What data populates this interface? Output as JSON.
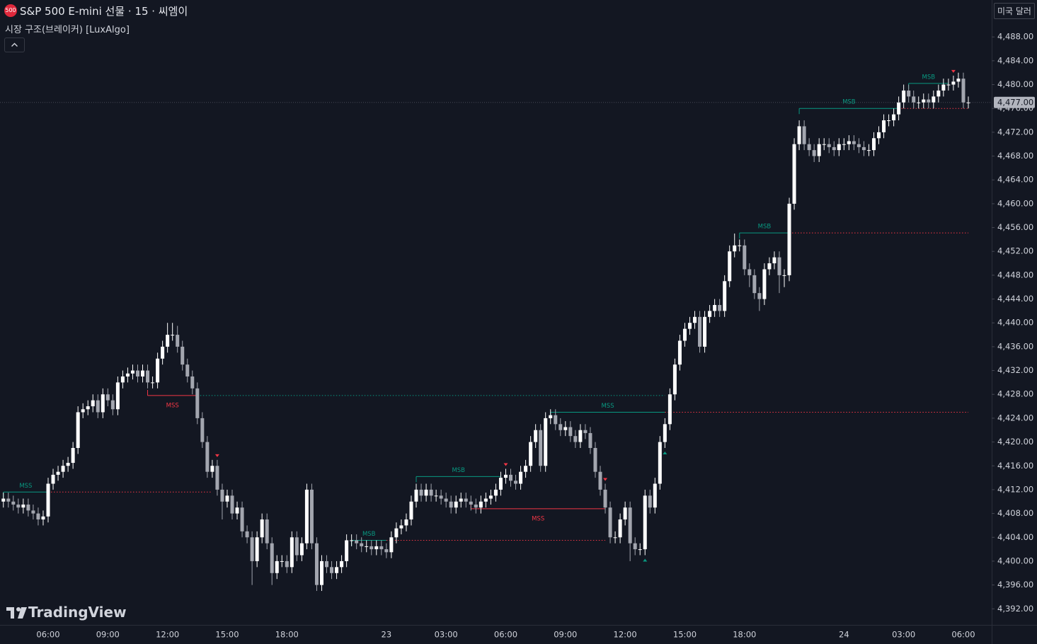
{
  "header": {
    "symbol_icon": "500",
    "title": "S&P 500 E-mini 선물 · 15 · 씨엠이",
    "indicator": "시장 구조(브레이커) [LuxAlgo]",
    "currency": "미국 달러",
    "brand": "TradingView"
  },
  "chart_data": {
    "type": "candlestick",
    "categories": [
      null,
      null,
      null,
      null,
      null,
      null,
      null,
      null,
      null,
      "06:00",
      null,
      null,
      null,
      null,
      null,
      null,
      null,
      null,
      null,
      null,
      null,
      "09:00",
      null,
      null,
      null,
      null,
      null,
      null,
      null,
      null,
      null,
      null,
      null,
      "12:00",
      null,
      null,
      null,
      null,
      null,
      null,
      null,
      null,
      null,
      null,
      null,
      "15:00",
      null,
      null,
      null,
      null,
      null,
      null,
      null,
      null,
      null,
      null,
      null,
      "18:00",
      null,
      null,
      null,
      null,
      null,
      null,
      null,
      null,
      null,
      null,
      null,
      null,
      null,
      null,
      null,
      null,
      null,
      null,
      null,
      "23",
      null,
      null,
      null,
      null,
      null,
      null,
      null,
      null,
      null,
      null,
      null,
      "03:00",
      null,
      null,
      null,
      null,
      null,
      null,
      null,
      null,
      null,
      null,
      null,
      "06:00",
      null,
      null,
      null,
      null,
      null,
      null,
      null,
      null,
      null,
      null,
      null,
      "09:00",
      null,
      null,
      null,
      null,
      null,
      null,
      null,
      null,
      null,
      null,
      null,
      "12:00",
      null,
      null,
      null,
      null,
      null,
      null,
      null,
      null,
      null,
      null,
      null,
      "15:00",
      null,
      null,
      null,
      null,
      null,
      null,
      null,
      null,
      null,
      null,
      null,
      "18:00",
      null,
      null,
      null,
      null,
      null,
      null,
      null,
      null,
      null,
      null,
      null,
      null,
      null,
      null,
      null,
      null,
      null,
      null,
      null,
      "24",
      null,
      null,
      null,
      null,
      null,
      null,
      null,
      null,
      null,
      null,
      null,
      "03:00",
      null,
      null,
      null,
      null,
      null,
      null,
      null,
      null,
      null,
      null,
      null,
      "06:00",
      null
    ],
    "open": [
      4410,
      4410.5,
      4410,
      4409.5,
      4409,
      4409.5,
      4408.5,
      4408,
      4407,
      4407.5,
      4413,
      4414.5,
      4415,
      4416,
      4416.5,
      4419,
      4425,
      4425.5,
      4426,
      4427,
      4425,
      4428,
      4427,
      4425.5,
      4430,
      4431,
      4431.5,
      4432,
      4431,
      4432,
      4430,
      4430,
      4434,
      4436,
      4438,
      4438,
      4436,
      4433,
      4431,
      4429,
      4424,
      4420,
      4415,
      4416,
      4412,
      4410,
      4411,
      4408,
      4409,
      4405,
      4404,
      4400,
      4404,
      4407,
      4403,
      4398,
      4400,
      4400,
      4399,
      4404,
      4401,
      4403,
      4412,
      4403,
      4396,
      4400,
      4399,
      4398,
      4399,
      4400,
      4403.5,
      4403.5,
      4403,
      4402.5,
      4402.5,
      4402,
      4402.5,
      4402,
      4401.5,
      4404,
      4405.5,
      4406,
      4407,
      4410,
      4412,
      4411,
      4412,
      4411,
      4411,
      4410.5,
      4410,
      4409,
      4410,
      4410.5,
      4410,
      4409.5,
      4409,
      4410,
      4410.5,
      4411,
      4412,
      4414,
      4414.5,
      4413.5,
      4413,
      4415,
      4416,
      4420,
      4422,
      4416,
      4424,
      4424.5,
      4423,
      4422,
      4422.5,
      4421,
      4420,
      4422,
      4421.5,
      4419,
      4415,
      4412,
      4409,
      4404,
      4404,
      4407,
      4409,
      4403,
      4402,
      4402,
      4411,
      4409,
      4413,
      4420,
      4423,
      4428,
      4433,
      4437,
      4439,
      4440,
      4441,
      4436,
      4441,
      4442,
      4443,
      4442,
      4447,
      4452,
      4453,
      4453,
      4449,
      4448,
      4445,
      4444,
      4449,
      4450,
      4451,
      4448,
      4448,
      4460,
      4470,
      4473,
      4470,
      4469,
      4468,
      4470,
      4470,
      4469.5,
      4469,
      4470,
      4470,
      4470.5,
      4470,
      4469.5,
      4469,
      4469,
      4471,
      4472,
      4474,
      4474,
      4475,
      4477,
      4479,
      4478,
      4477,
      4477,
      4477.5,
      4477,
      4478,
      4479,
      4480,
      4480,
      4480.5,
      4481,
      4477
    ],
    "high": [
      4411.5,
      4411.5,
      4411,
      4410.5,
      4410.5,
      4410.5,
      4409.5,
      4409,
      4408.5,
      4414,
      4415.5,
      4416,
      4417,
      4417.5,
      4420,
      4426,
      4426.5,
      4427,
      4428,
      4428,
      4429,
      4429,
      4428,
      4431,
      4432,
      4432.5,
      4433,
      4433,
      4433,
      4433,
      4431,
      4435,
      4437,
      4440,
      4440,
      4439.5,
      4437,
      4434,
      4432,
      4430,
      4425,
      4421,
      4417,
      4417,
      4413,
      4412,
      4412,
      4410,
      4410,
      4406,
      4405,
      4405,
      4408,
      4408,
      4404,
      4401,
      4401,
      4401,
      4405,
      4405,
      4404,
      4413,
      4413,
      4404,
      4401,
      4401,
      4400,
      4400,
      4401,
      4404.5,
      4404.5,
      4404.5,
      4404,
      4403.5,
      4403.5,
      4403.5,
      4403.5,
      4403,
      4405,
      4406.5,
      4407,
      4408,
      4411,
      4413,
      4413,
      4413,
      4413,
      4412,
      4412,
      4411.5,
      4411,
      4411,
      4411.5,
      4411.5,
      4411,
      4410.5,
      4411,
      4411.5,
      4412,
      4413,
      4415,
      4415.5,
      4415.5,
      4414.5,
      4416,
      4417,
      4421,
      4423,
      4423,
      4425,
      4425.5,
      4425.5,
      4424,
      4423.5,
      4423.5,
      4422,
      4423,
      4423,
      4422.5,
      4420,
      4416,
      4413,
      4410,
      4405,
      4408,
      4410,
      4410,
      4404,
      4403,
      4412,
      4412,
      4414,
      4421,
      4424,
      4429,
      4434,
      4438,
      4440,
      4441,
      4442,
      4442,
      4442,
      4443,
      4444,
      4444,
      4448,
      4453,
      4455,
      4454,
      4454,
      4450,
      4449,
      4446,
      4450,
      4451,
      4452,
      4452,
      4449,
      4461,
      4471,
      4474,
      4474,
      4471,
      4470,
      4471,
      4471,
      4471,
      4470.5,
      4471,
      4471,
      4471.5,
      4471.5,
      4471,
      4470.5,
      4470,
      4472,
      4473,
      4475,
      4475,
      4476,
      4478,
      4480,
      4480,
      4479,
      4478,
      4478.5,
      4478.5,
      4479,
      4480,
      4481,
      4481,
      4481.5,
      4482,
      4482,
      4478
    ],
    "low": [
      4409,
      4409,
      4408.5,
      4408,
      4408,
      4407.5,
      4407,
      4406,
      4406,
      4406.5,
      4412,
      4413.5,
      4414,
      4415,
      4415.5,
      4418,
      4424,
      4424.5,
      4425,
      4424,
      4424,
      4426,
      4424.5,
      4424.5,
      4429,
      4430,
      4430.5,
      4430,
      4430,
      4429,
      4429,
      4429,
      4433,
      4435,
      4437,
      4435,
      4432,
      4430,
      4428,
      4423,
      4419,
      4414,
      4414,
      4411,
      4407,
      4409,
      4407,
      4407,
      4404,
      4403,
      4396,
      4399,
      4403,
      4402,
      4396,
      4397,
      4399,
      4398,
      4398,
      4400,
      4400,
      4402,
      4402,
      4395,
      4395,
      4398,
      4397,
      4397,
      4398,
      4399,
      4402.5,
      4402,
      4401.5,
      4401.5,
      4401,
      4401,
      4401,
      4400.5,
      4400.5,
      4403,
      4404.5,
      4405,
      4406,
      4409,
      4410,
      4410,
      4410,
      4410,
      4409.5,
      4409,
      4408,
      4408,
      4409,
      4409,
      4408.5,
      4408,
      4408,
      4409,
      4409.5,
      4410,
      4411,
      4413,
      4412.5,
      4412,
      4412,
      4414,
      4415,
      4419,
      4415,
      4415,
      4423,
      4422,
      4421,
      4421,
      4420,
      4419,
      4419,
      4420.5,
      4418,
      4414,
      4411,
      4408,
      4403,
      4403,
      4403,
      4406,
      4400,
      4401,
      4401,
      4401,
      4408,
      4408,
      4412,
      4419,
      4422,
      4427,
      4432,
      4436,
      4438,
      4439,
      4435,
      4435,
      4440,
      4441,
      4441,
      4441,
      4446,
      4451,
      4452,
      4448,
      4446,
      4444,
      4442,
      4443,
      4448,
      4449,
      4445,
      4446,
      4447,
      4459,
      4469,
      4469,
      4468,
      4467,
      4467,
      4469,
      4468.5,
      4468,
      4468,
      4469,
      4469,
      4469,
      4468.5,
      4468,
      4468,
      4468,
      4470,
      4471,
      4473,
      4473,
      4474,
      4476,
      4477,
      4476,
      4476,
      4476,
      4476,
      4476,
      4477,
      4478,
      4479,
      4479,
      4479.5,
      4476,
      4476
    ],
    "close": [
      4410.5,
      4410,
      4409.5,
      4409,
      4409.5,
      4408.5,
      4408,
      4407,
      4407.5,
      4413,
      4414.5,
      4415,
      4416,
      4416.5,
      4419,
      4425,
      4425.5,
      4426,
      4427,
      4425,
      4428,
      4427,
      4425.5,
      4430,
      4431,
      4431.5,
      4432,
      4431,
      4432,
      4430,
      4430,
      4434,
      4436,
      4438,
      4438,
      4436,
      4433,
      4431,
      4429,
      4424,
      4420,
      4415,
      4416,
      4412,
      4410,
      4411,
      4408,
      4409,
      4405,
      4404,
      4400,
      4404,
      4407,
      4403,
      4398,
      4400,
      4400,
      4399,
      4404,
      4401,
      4403,
      4412,
      4403,
      4396,
      4400,
      4399,
      4398,
      4399,
      4400,
      4403.5,
      4403.5,
      4403,
      4402.5,
      4402.5,
      4402,
      4402.5,
      4402,
      4401.5,
      4404,
      4405.5,
      4406,
      4407,
      4410,
      4412,
      4411,
      4412,
      4411,
      4411,
      4410.5,
      4410,
      4409,
      4410,
      4410.5,
      4410,
      4409.5,
      4409,
      4410,
      4410.5,
      4411,
      4412,
      4414,
      4414.5,
      4413.5,
      4413,
      4415,
      4416,
      4420,
      4422,
      4416,
      4424,
      4424.5,
      4423,
      4422,
      4422.5,
      4421,
      4420,
      4422,
      4421.5,
      4419,
      4415,
      4412,
      4409,
      4404,
      4404,
      4407,
      4409,
      4403,
      4402,
      4402,
      4411,
      4409,
      4413,
      4420,
      4423,
      4428,
      4433,
      4437,
      4439,
      4440,
      4441,
      4436,
      4441,
      4442,
      4443,
      4442,
      4447,
      4452,
      4453,
      4453,
      4449,
      4448,
      4445,
      4444,
      4449,
      4450,
      4451,
      4448,
      4448,
      4460,
      4470,
      4473,
      4470,
      4469,
      4468,
      4470,
      4470,
      4469.5,
      4469,
      4470,
      4470,
      4470.5,
      4470,
      4469.5,
      4469,
      4469,
      4471,
      4472,
      4474,
      4474,
      4475,
      4477,
      4479,
      4478,
      4477,
      4477,
      4477.5,
      4477,
      4478,
      4479,
      4480,
      4480,
      4480.5,
      4481,
      4477,
      4477
    ],
    "up_color": "#ffffff",
    "down_color": "#a3a6af",
    "ylim": [
      4389.3,
      4494.2
    ],
    "yticks": [
      {
        "value": 4488,
        "label": "4,488.00"
      },
      {
        "value": 4484,
        "label": "4,484.00"
      },
      {
        "value": 4480,
        "label": "4,480.00"
      },
      {
        "value": 4476,
        "label": "4,476.00"
      },
      {
        "value": 4472,
        "label": "4,472.00"
      },
      {
        "value": 4468,
        "label": "4,468.00"
      },
      {
        "value": 4464,
        "label": "4,464.00"
      },
      {
        "value": 4460,
        "label": "4,460.00"
      },
      {
        "value": 4456,
        "label": "4,456.00"
      },
      {
        "value": 4452,
        "label": "4,452.00"
      },
      {
        "value": 4448,
        "label": "4,448.00"
      },
      {
        "value": 4444,
        "label": "4,444.00"
      },
      {
        "value": 4440,
        "label": "4,440.00"
      },
      {
        "value": 4436,
        "label": "4,436.00"
      },
      {
        "value": 4432,
        "label": "4,432.00"
      },
      {
        "value": 4428,
        "label": "4,428.00"
      },
      {
        "value": 4424,
        "label": "4,424.00"
      },
      {
        "value": 4420,
        "label": "4,420.00"
      },
      {
        "value": 4416,
        "label": "4,416.00"
      },
      {
        "value": 4412,
        "label": "4,412.00"
      },
      {
        "value": 4408,
        "label": "4,408.00"
      },
      {
        "value": 4404,
        "label": "4,404.00"
      },
      {
        "value": 4400,
        "label": "4,400.00"
      },
      {
        "value": 4396,
        "label": "4,396.00"
      },
      {
        "value": 4392,
        "label": "4,392.00"
      }
    ],
    "last_price_label": "4,477.00",
    "annotations": [
      {
        "text": "MSS",
        "color": "#089981",
        "price": 4411.6,
        "start": 0,
        "end": 9
      },
      {
        "text": "MSS",
        "color": "#f23645",
        "price": 4427.8,
        "start": 29,
        "end": 39
      },
      {
        "text": "MSB",
        "color": "#089981",
        "price": 4403.5,
        "start": 70,
        "end": 77
      },
      {
        "text": "MSB",
        "color": "#089981",
        "price": 4414.2,
        "start": 83,
        "end": 100
      },
      {
        "text": "MSS",
        "color": "#f23645",
        "price": 4408.8,
        "start": 94,
        "end": 121
      },
      {
        "text": "MSS",
        "color": "#089981",
        "price": 4425.0,
        "start": 110,
        "end": 133
      },
      {
        "text": "MSB",
        "color": "#089981",
        "price": 4455.1,
        "start": 148,
        "end": 158
      },
      {
        "text": "MSB",
        "color": "#089981",
        "price": 4476.0,
        "start": 160,
        "end": 180
      },
      {
        "text": "MSB",
        "color": "#089981",
        "price": 4480.2,
        "start": 182,
        "end": 190
      }
    ],
    "levels": [
      {
        "color": "#f23645",
        "price": 4411.6,
        "start": 9,
        "end": 42
      },
      {
        "color": "#089981",
        "price": 4427.8,
        "start": 39,
        "end": 133
      },
      {
        "color": "#f23645",
        "price": 4403.5,
        "start": 77,
        "end": 121
      },
      {
        "color": "#f23645",
        "price": 4425.0,
        "start": 133,
        "end": 194
      },
      {
        "color": "#f23645",
        "price": 4455.1,
        "start": 158,
        "end": 194
      },
      {
        "color": "#f23645",
        "price": 4476.0,
        "start": 180,
        "end": 194
      }
    ],
    "swing_markers": [
      {
        "index": 43,
        "side": "high",
        "color": "#f23645"
      },
      {
        "index": 101,
        "side": "high",
        "color": "#f23645"
      },
      {
        "index": 121,
        "side": "high",
        "color": "#f23645"
      },
      {
        "index": 191,
        "side": "high",
        "color": "#f23645"
      },
      {
        "index": 129,
        "side": "low",
        "color": "#089981"
      },
      {
        "index": 133,
        "side": "low",
        "color": "#089981"
      }
    ]
  }
}
